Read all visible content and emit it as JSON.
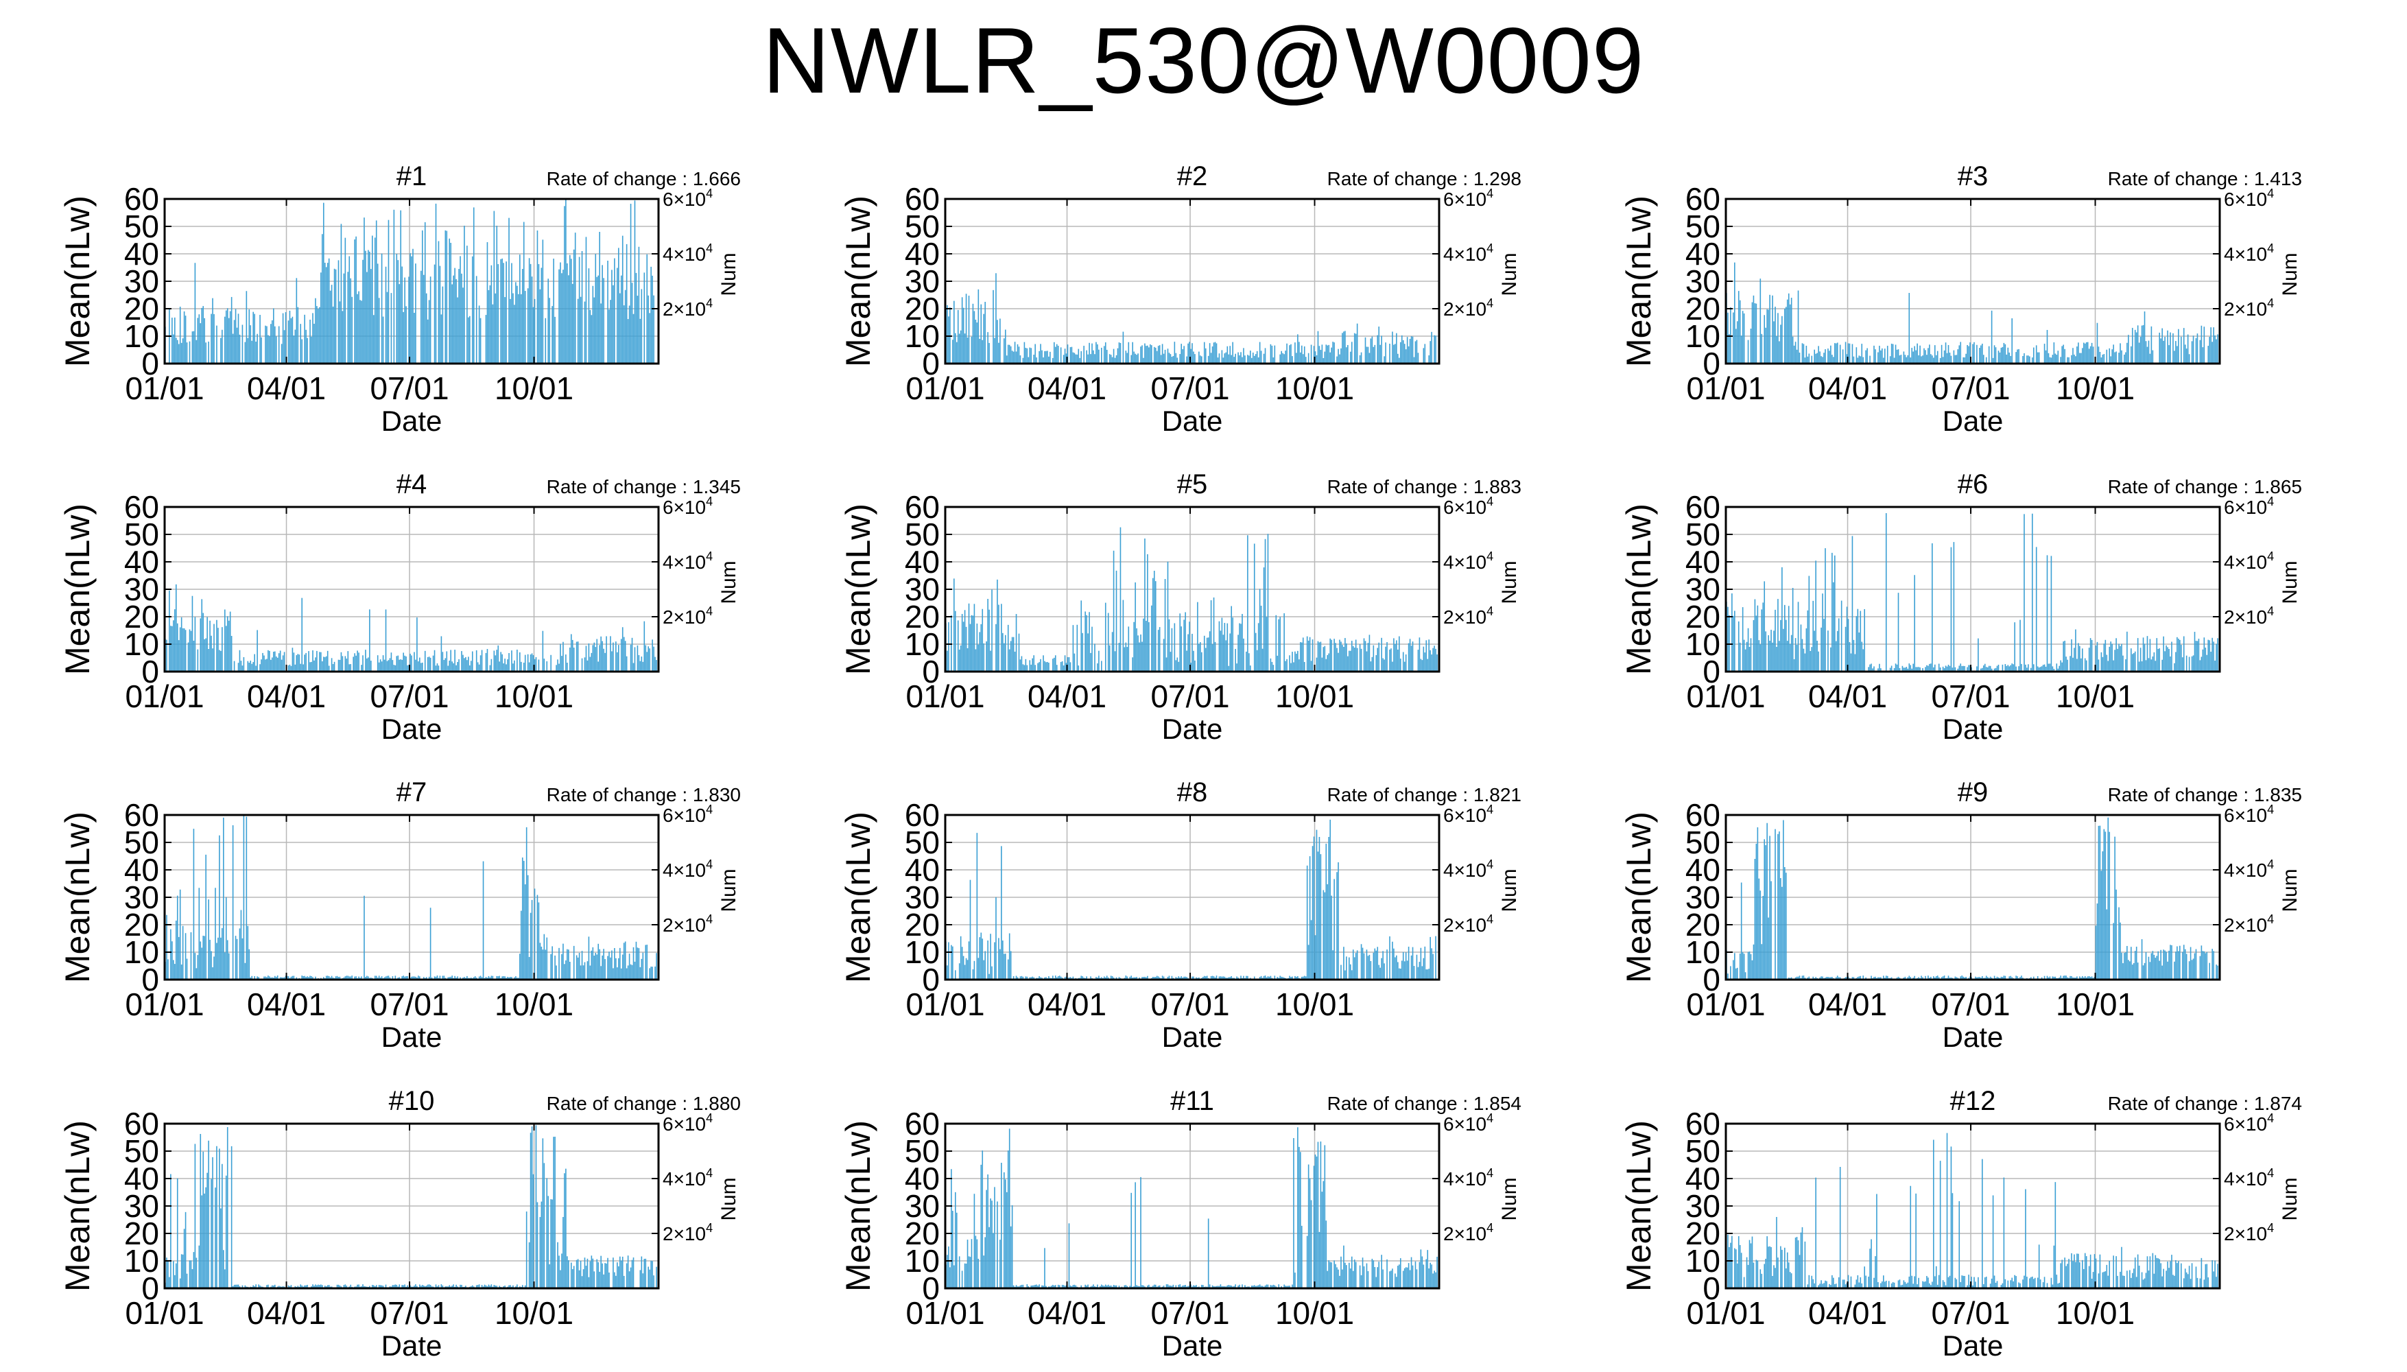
{
  "title": "NWLR_530@W0009",
  "colors": {
    "bars": "#3a9fd4",
    "grid": "#b8b8b8",
    "frame": "#000000"
  },
  "chart_data": [
    {
      "type": "bar",
      "title": "#1",
      "rate_label": "Rate of change : 1.666",
      "xlabel": "Date",
      "ylabel": "Mean(nLw)",
      "y2label": "Num",
      "x_ticks": [
        "01/01",
        "04/01",
        "07/01",
        "10/01"
      ],
      "x_range": [
        "01/01",
        "12/31"
      ],
      "ylim": [
        0,
        60
      ],
      "y_ticks": [
        0,
        10,
        20,
        30,
        40,
        50,
        60
      ],
      "y2_ticks": [
        {
          "value": 20000,
          "base": "2×10",
          "exp": "4"
        },
        {
          "value": 40000,
          "base": "4×10",
          "exp": "4"
        },
        {
          "value": 60000,
          "base": "6×10",
          "exp": "4"
        }
      ],
      "grid": true,
      "segments": [
        {
          "start": "01/01",
          "end": "04/25",
          "mean": 14,
          "spread": 7,
          "spike_rate": 0.1,
          "spike_max": 40
        },
        {
          "start": "04/25",
          "end": "12/31",
          "mean": 28,
          "spread": 12,
          "spike_rate": 0.4,
          "spike_max": 60
        }
      ]
    },
    {
      "type": "bar",
      "title": "#2",
      "rate_label": "Rate of change : 1.298",
      "xlabel": "Date",
      "ylabel": "Mean(nLw)",
      "y2label": "Num",
      "x_ticks": [
        "01/01",
        "04/01",
        "07/01",
        "10/01"
      ],
      "x_range": [
        "01/01",
        "12/31"
      ],
      "ylim": [
        0,
        60
      ],
      "y_ticks": [
        0,
        10,
        20,
        30,
        40,
        50,
        60
      ],
      "y2_ticks": [
        {
          "value": 20000,
          "base": "2×10",
          "exp": "4"
        },
        {
          "value": 40000,
          "base": "4×10",
          "exp": "4"
        },
        {
          "value": 60000,
          "base": "6×10",
          "exp": "4"
        }
      ],
      "grid": true,
      "segments": [
        {
          "start": "01/01",
          "end": "02/15",
          "mean": 16,
          "spread": 9,
          "spike_rate": 0.15,
          "spike_max": 33
        },
        {
          "start": "02/15",
          "end": "10/20",
          "mean": 5,
          "spread": 3,
          "spike_rate": 0.02,
          "spike_max": 12
        },
        {
          "start": "10/20",
          "end": "12/31",
          "mean": 7,
          "spread": 5,
          "spike_rate": 0.1,
          "spike_max": 16
        }
      ]
    },
    {
      "type": "bar",
      "title": "#3",
      "rate_label": "Rate of change : 1.413",
      "xlabel": "Date",
      "ylabel": "Mean(nLw)",
      "y2label": "Num",
      "x_ticks": [
        "01/01",
        "04/01",
        "07/01",
        "10/01"
      ],
      "x_range": [
        "01/01",
        "12/31"
      ],
      "ylim": [
        0,
        60
      ],
      "y_ticks": [
        0,
        10,
        20,
        30,
        40,
        50,
        60
      ],
      "y2_ticks": [
        {
          "value": 20000,
          "base": "2×10",
          "exp": "4"
        },
        {
          "value": 40000,
          "base": "4×10",
          "exp": "4"
        },
        {
          "value": 60000,
          "base": "6×10",
          "exp": "4"
        }
      ],
      "grid": true,
      "segments": [
        {
          "start": "01/01",
          "end": "02/20",
          "mean": 17,
          "spread": 9,
          "spike_rate": 0.15,
          "spike_max": 38
        },
        {
          "start": "02/20",
          "end": "10/25",
          "mean": 5,
          "spread": 3,
          "spike_rate": 0.03,
          "spike_max": 28
        },
        {
          "start": "10/25",
          "end": "12/31",
          "mean": 8,
          "spread": 6,
          "spike_rate": 0.1,
          "spike_max": 20
        }
      ]
    },
    {
      "type": "bar",
      "title": "#4",
      "rate_label": "Rate of change : 1.345",
      "xlabel": "Date",
      "ylabel": "Mean(nLw)",
      "y2label": "Num",
      "x_ticks": [
        "01/01",
        "04/01",
        "07/01",
        "10/01"
      ],
      "x_range": [
        "01/01",
        "12/31"
      ],
      "ylim": [
        0,
        60
      ],
      "y_ticks": [
        0,
        10,
        20,
        30,
        40,
        50,
        60
      ],
      "y2_ticks": [
        {
          "value": 20000,
          "base": "2×10",
          "exp": "4"
        },
        {
          "value": 40000,
          "base": "4×10",
          "exp": "4"
        },
        {
          "value": 60000,
          "base": "6×10",
          "exp": "4"
        }
      ],
      "grid": true,
      "segments": [
        {
          "start": "01/01",
          "end": "02/20",
          "mean": 15,
          "spread": 8,
          "spike_rate": 0.15,
          "spike_max": 32
        },
        {
          "start": "02/20",
          "end": "10/20",
          "mean": 5,
          "spread": 3,
          "spike_rate": 0.03,
          "spike_max": 27
        },
        {
          "start": "10/20",
          "end": "12/31",
          "mean": 8,
          "spread": 5,
          "spike_rate": 0.1,
          "spike_max": 20
        }
      ]
    },
    {
      "type": "bar",
      "title": "#5",
      "rate_label": "Rate of change : 1.883",
      "xlabel": "Date",
      "ylabel": "Mean(nLw)",
      "y2label": "Num",
      "x_ticks": [
        "01/01",
        "04/01",
        "07/01",
        "10/01"
      ],
      "x_range": [
        "01/01",
        "12/31"
      ],
      "ylim": [
        0,
        60
      ],
      "y_ticks": [
        0,
        10,
        20,
        30,
        40,
        50,
        60
      ],
      "y2_ticks": [
        {
          "value": 20000,
          "base": "2×10",
          "exp": "4"
        },
        {
          "value": 40000,
          "base": "4×10",
          "exp": "4"
        },
        {
          "value": 60000,
          "base": "6×10",
          "exp": "4"
        }
      ],
      "grid": true,
      "segments": [
        {
          "start": "01/01",
          "end": "02/25",
          "mean": 16,
          "spread": 9,
          "spike_rate": 0.15,
          "spike_max": 34
        },
        {
          "start": "02/25",
          "end": "04/05",
          "mean": 4,
          "spread": 2,
          "spike_rate": 0.05,
          "spike_max": 10
        },
        {
          "start": "04/05",
          "end": "09/10",
          "mean": 12,
          "spread": 10,
          "spike_rate": 0.3,
          "spike_max": 60
        },
        {
          "start": "09/10",
          "end": "12/31",
          "mean": 8,
          "spread": 5,
          "spike_rate": 0.1,
          "spike_max": 18
        }
      ]
    },
    {
      "type": "bar",
      "title": "#6",
      "rate_label": "Rate of change : 1.865",
      "xlabel": "Date",
      "ylabel": "Mean(nLw)",
      "y2label": "Num",
      "x_ticks": [
        "01/01",
        "04/01",
        "07/01",
        "10/01"
      ],
      "x_range": [
        "01/01",
        "12/31"
      ],
      "ylim": [
        0,
        60
      ],
      "y_ticks": [
        0,
        10,
        20,
        30,
        40,
        50,
        60
      ],
      "y2_ticks": [
        {
          "value": 20000,
          "base": "2×10",
          "exp": "4"
        },
        {
          "value": 40000,
          "base": "4×10",
          "exp": "4"
        },
        {
          "value": 60000,
          "base": "6×10",
          "exp": "4"
        }
      ],
      "grid": true,
      "segments": [
        {
          "start": "01/01",
          "end": "02/15",
          "mean": 18,
          "spread": 10,
          "spike_rate": 0.2,
          "spike_max": 40
        },
        {
          "start": "02/15",
          "end": "04/15",
          "mean": 14,
          "spread": 10,
          "spike_rate": 0.3,
          "spike_max": 60
        },
        {
          "start": "04/15",
          "end": "09/05",
          "mean": 2,
          "spread": 1,
          "spike_rate": 0.15,
          "spike_max": 60
        },
        {
          "start": "09/05",
          "end": "12/31",
          "mean": 8,
          "spread": 5,
          "spike_rate": 0.1,
          "spike_max": 17
        }
      ]
    },
    {
      "type": "bar",
      "title": "#7",
      "rate_label": "Rate of change : 1.830",
      "xlabel": "Date",
      "ylabel": "Mean(nLw)",
      "y2label": "Num",
      "x_ticks": [
        "01/01",
        "04/01",
        "07/01",
        "10/01"
      ],
      "x_range": [
        "01/01",
        "12/31"
      ],
      "ylim": [
        0,
        60
      ],
      "y_ticks": [
        0,
        10,
        20,
        30,
        40,
        50,
        60
      ],
      "y2_ticks": [
        {
          "value": 20000,
          "base": "2×10",
          "exp": "4"
        },
        {
          "value": 40000,
          "base": "4×10",
          "exp": "4"
        },
        {
          "value": 60000,
          "base": "6×10",
          "exp": "4"
        }
      ],
      "grid": true,
      "segments": [
        {
          "start": "01/01",
          "end": "03/05",
          "mean": 12,
          "spread": 8,
          "spike_rate": 0.25,
          "spike_max": 60
        },
        {
          "start": "03/05",
          "end": "09/20",
          "mean": 1,
          "spread": 0.5,
          "spike_rate": 0.02,
          "spike_max": 60
        },
        {
          "start": "09/20",
          "end": "10/05",
          "mean": 25,
          "spread": 20,
          "spike_rate": 0.5,
          "spike_max": 60
        },
        {
          "start": "10/05",
          "end": "12/31",
          "mean": 9,
          "spread": 5,
          "spike_rate": 0.1,
          "spike_max": 18
        }
      ]
    },
    {
      "type": "bar",
      "title": "#8",
      "rate_label": "Rate of change : 1.821",
      "xlabel": "Date",
      "ylabel": "Mean(nLw)",
      "y2label": "Num",
      "x_ticks": [
        "01/01",
        "04/01",
        "07/01",
        "10/01"
      ],
      "x_range": [
        "01/01",
        "12/31"
      ],
      "ylim": [
        0,
        60
      ],
      "y_ticks": [
        0,
        10,
        20,
        30,
        40,
        50,
        60
      ],
      "y2_ticks": [
        {
          "value": 20000,
          "base": "2×10",
          "exp": "4"
        },
        {
          "value": 40000,
          "base": "4×10",
          "exp": "4"
        },
        {
          "value": 60000,
          "base": "6×10",
          "exp": "4"
        }
      ],
      "grid": true,
      "segments": [
        {
          "start": "01/01",
          "end": "02/20",
          "mean": 10,
          "spread": 8,
          "spike_rate": 0.25,
          "spike_max": 60
        },
        {
          "start": "02/20",
          "end": "09/25",
          "mean": 1,
          "spread": 0.5,
          "spike_rate": 0.0,
          "spike_max": 10
        },
        {
          "start": "09/25",
          "end": "10/20",
          "mean": 30,
          "spread": 20,
          "spike_rate": 0.5,
          "spike_max": 60
        },
        {
          "start": "10/20",
          "end": "12/31",
          "mean": 8,
          "spread": 5,
          "spike_rate": 0.1,
          "spike_max": 16
        }
      ]
    },
    {
      "type": "bar",
      "title": "#9",
      "rate_label": "Rate of change : 1.835",
      "xlabel": "Date",
      "ylabel": "Mean(nLw)",
      "y2label": "Num",
      "x_ticks": [
        "01/01",
        "04/01",
        "07/01",
        "10/01"
      ],
      "x_range": [
        "01/01",
        "12/31"
      ],
      "ylim": [
        0,
        60
      ],
      "y_ticks": [
        0,
        10,
        20,
        30,
        40,
        50,
        60
      ],
      "y2_ticks": [
        {
          "value": 20000,
          "base": "2×10",
          "exp": "4"
        },
        {
          "value": 40000,
          "base": "4×10",
          "exp": "4"
        },
        {
          "value": 60000,
          "base": "6×10",
          "exp": "4"
        }
      ],
      "grid": true,
      "segments": [
        {
          "start": "01/01",
          "end": "01/20",
          "mean": 8,
          "spread": 6,
          "spike_rate": 0.2,
          "spike_max": 40
        },
        {
          "start": "01/20",
          "end": "02/15",
          "mean": 30,
          "spread": 25,
          "spike_rate": 0.5,
          "spike_max": 60
        },
        {
          "start": "02/15",
          "end": "10/01",
          "mean": 1,
          "spread": 0.5,
          "spike_rate": 0.0,
          "spike_max": 10
        },
        {
          "start": "10/01",
          "end": "10/20",
          "mean": 35,
          "spread": 25,
          "spike_rate": 0.5,
          "spike_max": 60
        },
        {
          "start": "10/20",
          "end": "12/31",
          "mean": 9,
          "spread": 4,
          "spike_rate": 0.1,
          "spike_max": 15
        }
      ]
    },
    {
      "type": "bar",
      "title": "#10",
      "rate_label": "Rate of change : 1.880",
      "xlabel": "Date",
      "ylabel": "Mean(nLw)",
      "y2label": "Num",
      "x_ticks": [
        "01/01",
        "04/01",
        "07/01",
        "10/01"
      ],
      "x_range": [
        "01/01",
        "12/31"
      ],
      "ylim": [
        0,
        60
      ],
      "y_ticks": [
        0,
        10,
        20,
        30,
        40,
        50,
        60
      ],
      "y2_ticks": [
        {
          "value": 20000,
          "base": "2×10",
          "exp": "4"
        },
        {
          "value": 40000,
          "base": "4×10",
          "exp": "4"
        },
        {
          "value": 60000,
          "base": "6×10",
          "exp": "4"
        }
      ],
      "grid": true,
      "segments": [
        {
          "start": "01/01",
          "end": "01/25",
          "mean": 8,
          "spread": 6,
          "spike_rate": 0.2,
          "spike_max": 60
        },
        {
          "start": "01/25",
          "end": "02/20",
          "mean": 30,
          "spread": 25,
          "spike_rate": 0.5,
          "spike_max": 60
        },
        {
          "start": "02/20",
          "end": "09/25",
          "mean": 1,
          "spread": 0.5,
          "spike_rate": 0.0,
          "spike_max": 10
        },
        {
          "start": "09/25",
          "end": "10/25",
          "mean": 25,
          "spread": 22,
          "spike_rate": 0.5,
          "spike_max": 60
        },
        {
          "start": "10/25",
          "end": "12/31",
          "mean": 8,
          "spread": 4,
          "spike_rate": 0.1,
          "spike_max": 12
        }
      ]
    },
    {
      "type": "bar",
      "title": "#11",
      "rate_label": "Rate of change : 1.854",
      "xlabel": "Date",
      "ylabel": "Mean(nLw)",
      "y2label": "Num",
      "x_ticks": [
        "01/01",
        "04/01",
        "07/01",
        "10/01"
      ],
      "x_range": [
        "01/01",
        "12/31"
      ],
      "ylim": [
        0,
        60
      ],
      "y_ticks": [
        0,
        10,
        20,
        30,
        40,
        50,
        60
      ],
      "y2_ticks": [
        {
          "value": 20000,
          "base": "2×10",
          "exp": "4"
        },
        {
          "value": 40000,
          "base": "4×10",
          "exp": "4"
        },
        {
          "value": 60000,
          "base": "6×10",
          "exp": "4"
        }
      ],
      "grid": true,
      "segments": [
        {
          "start": "01/01",
          "end": "01/25",
          "mean": 12,
          "spread": 8,
          "spike_rate": 0.2,
          "spike_max": 60
        },
        {
          "start": "01/25",
          "end": "02/20",
          "mean": 30,
          "spread": 25,
          "spike_rate": 0.5,
          "spike_max": 60
        },
        {
          "start": "02/20",
          "end": "09/15",
          "mean": 1,
          "spread": 0.5,
          "spike_rate": 0.02,
          "spike_max": 60
        },
        {
          "start": "09/15",
          "end": "10/10",
          "mean": 30,
          "spread": 25,
          "spike_rate": 0.5,
          "spike_max": 60
        },
        {
          "start": "10/10",
          "end": "12/31",
          "mean": 8,
          "spread": 4,
          "spike_rate": 0.1,
          "spike_max": 16
        }
      ]
    },
    {
      "type": "bar",
      "title": "#12",
      "rate_label": "Rate of change : 1.874",
      "xlabel": "Date",
      "ylabel": "Mean(nLw)",
      "y2label": "Num",
      "x_ticks": [
        "01/01",
        "04/01",
        "07/01",
        "10/01"
      ],
      "x_range": [
        "01/01",
        "12/31"
      ],
      "ylim": [
        0,
        60
      ],
      "y_ticks": [
        0,
        10,
        20,
        30,
        40,
        50,
        60
      ],
      "y2_ticks": [
        {
          "value": 20000,
          "base": "2×10",
          "exp": "4"
        },
        {
          "value": 40000,
          "base": "4×10",
          "exp": "4"
        },
        {
          "value": 60000,
          "base": "6×10",
          "exp": "4"
        }
      ],
      "grid": true,
      "segments": [
        {
          "start": "01/01",
          "end": "03/01",
          "mean": 12,
          "spread": 8,
          "spike_rate": 0.15,
          "spike_max": 26
        },
        {
          "start": "03/01",
          "end": "09/05",
          "mean": 3,
          "spread": 2,
          "spike_rate": 0.15,
          "spike_max": 60
        },
        {
          "start": "09/05",
          "end": "12/31",
          "mean": 8,
          "spread": 5,
          "spike_rate": 0.1,
          "spike_max": 18
        }
      ]
    }
  ]
}
